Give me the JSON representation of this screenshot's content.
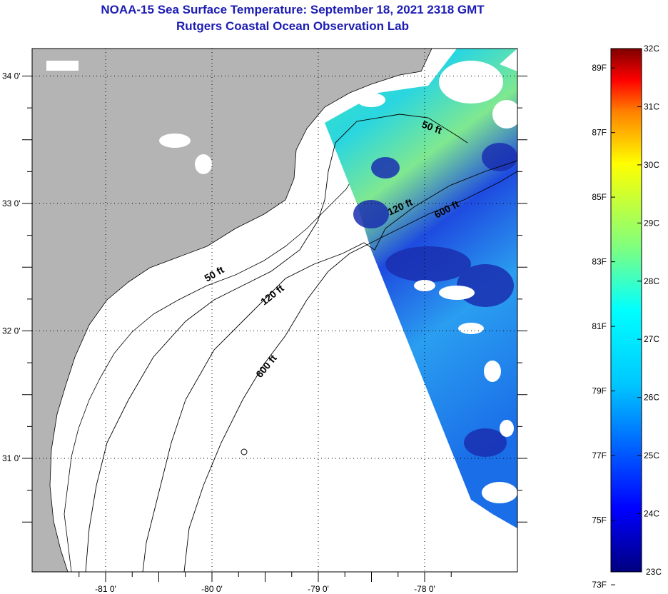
{
  "title": {
    "line1": "NOAA-15 Sea Surface Temperature:  September 18, 2021 2318 GMT",
    "line2": "Rutgers Coastal Ocean Observation Lab"
  },
  "map": {
    "lon_labels": [
      {
        "value": -81,
        "label": "-81 0'"
      },
      {
        "value": -80,
        "label": "-80 0'"
      },
      {
        "value": -79,
        "label": "-79 0'"
      },
      {
        "value": -78,
        "label": "-78 0'"
      }
    ],
    "lat_labels": [
      {
        "value": 34,
        "label": "34 0'"
      },
      {
        "value": 33,
        "label": "33 0'"
      },
      {
        "value": 32,
        "label": "32 0'"
      },
      {
        "value": 31,
        "label": "31 0'"
      }
    ],
    "contour_labels": {
      "c50_a": "50 ft",
      "c50_b": "50 ft",
      "c120_a": "120 ft",
      "c120_b": "120 ft",
      "c600_a": "600 ft",
      "c600_b": "600 ft"
    },
    "colors": {
      "land": "#b4b4b4",
      "ocean_nodata": "#ffffff"
    }
  },
  "colorbar": {
    "fahrenheit": [
      "89F",
      "87F",
      "85F",
      "83F",
      "81F",
      "79F",
      "77F",
      "75F",
      "73F"
    ],
    "celsius": [
      "32C",
      "31C",
      "30C",
      "29C",
      "28C",
      "27C",
      "26C",
      "25C",
      "24C",
      "23C"
    ],
    "range_c": [
      23,
      32
    ]
  }
}
